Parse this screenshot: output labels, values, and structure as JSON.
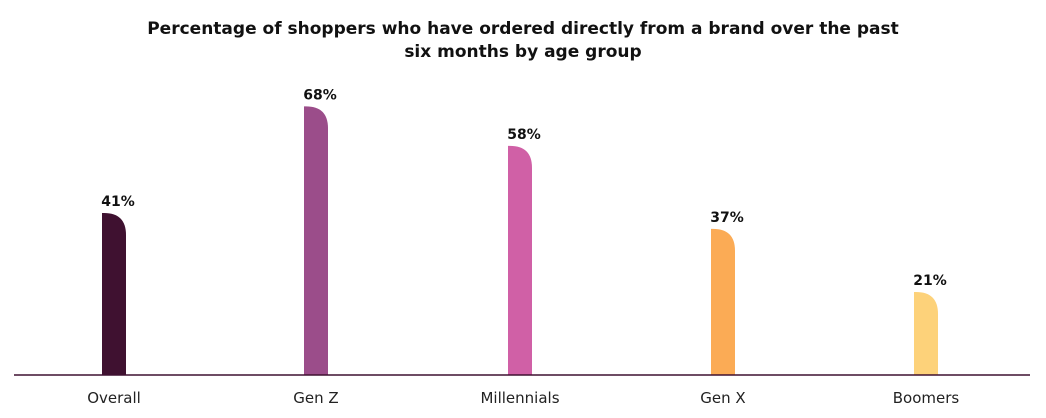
{
  "chart_data": {
    "type": "bar",
    "title_lines": [
      "Percentage of shoppers who have ordered directly from a brand over the past",
      "six months by age group"
    ],
    "categories": [
      "Overall",
      "Gen Z",
      "Millennials",
      "Gen X",
      "Boomers"
    ],
    "values": [
      41,
      68,
      58,
      37,
      21
    ],
    "value_labels": [
      "41%",
      "68%",
      "58%",
      "37%",
      "21%"
    ],
    "unit": "%",
    "colors": [
      "#3f1130",
      "#9b4d8a",
      "#d060a6",
      "#fbab55",
      "#fdd27a"
    ],
    "axis_color": "#3f1130",
    "ylim": [
      0,
      100
    ],
    "grid": false,
    "legend": "none"
  }
}
